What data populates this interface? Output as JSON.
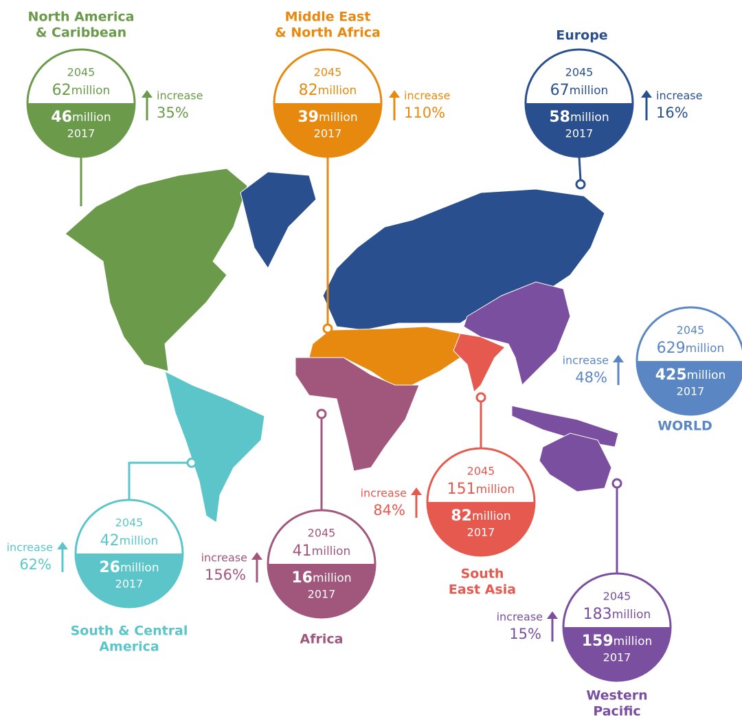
{
  "regions": [
    {
      "name": [
        "North America",
        "& Caribbean"
      ],
      "color": "#6a9a4a",
      "year_future": "2045",
      "value_future": "62",
      "unit_future": "million",
      "value_past": "46",
      "unit_past": "million",
      "year_past": "2017",
      "increase_label": "increase",
      "increase_pct": "35%"
    },
    {
      "name": [
        "Middle East",
        "& North Africa"
      ],
      "color": "#e8890f",
      "year_future": "2045",
      "value_future": "82",
      "unit_future": "million",
      "value_past": "39",
      "unit_past": "million",
      "year_past": "2017",
      "increase_label": "increase",
      "increase_pct": "110%"
    },
    {
      "name": [
        "Europe"
      ],
      "color": "#2a4f8f",
      "year_future": "2045",
      "value_future": "67",
      "unit_future": "million",
      "value_past": "58",
      "unit_past": "million",
      "year_past": "2017",
      "increase_label": "increase",
      "increase_pct": "16%"
    },
    {
      "name": [
        "WORLD"
      ],
      "color": "#5b86c4",
      "year_future": "2045",
      "value_future": "629",
      "unit_future": "million",
      "value_past": "425",
      "unit_past": "million",
      "year_past": "2017",
      "increase_label": "increase",
      "increase_pct": "48%"
    },
    {
      "name": [
        "South",
        "East Asia"
      ],
      "color": "#e5594e",
      "year_future": "2045",
      "value_future": "151",
      "unit_future": "million",
      "value_past": "82",
      "unit_past": "million",
      "year_past": "2017",
      "increase_label": "increase",
      "increase_pct": "84%"
    },
    {
      "name": [
        "Africa"
      ],
      "color": "#a0577b",
      "year_future": "2045",
      "value_future": "41",
      "unit_future": "million",
      "value_past": "16",
      "unit_past": "million",
      "year_past": "2017",
      "increase_label": "increase",
      "increase_pct": "156%"
    },
    {
      "name": [
        "South & Central",
        "America"
      ],
      "color": "#5cc5c9",
      "year_future": "2045",
      "value_future": "42",
      "unit_future": "million",
      "value_past": "26",
      "unit_past": "million",
      "year_past": "2017",
      "increase_label": "increase",
      "increase_pct": "62%"
    },
    {
      "name": [
        "Western",
        "Pacific"
      ],
      "color": "#7b4fa0",
      "year_future": "2045",
      "value_future": "183",
      "unit_future": "million",
      "value_past": "159",
      "unit_past": "million",
      "year_past": "2017",
      "increase_label": "increase",
      "increase_pct": "15%"
    }
  ]
}
